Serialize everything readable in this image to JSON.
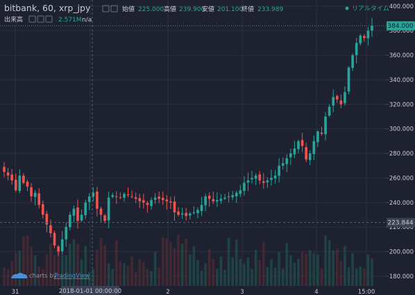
{
  "header": {
    "symbol_title": "bitbank, 60, xrp_jpy",
    "ohlc": [
      {
        "label": "始値",
        "value": "225.000"
      },
      {
        "label": "高値",
        "value": "239.900"
      },
      {
        "label": "安値",
        "value": "201.100"
      },
      {
        "label": "終値",
        "value": "233.989"
      }
    ],
    "realtime_label": "リアルタイム",
    "volume_label": "出来高",
    "volume_value": "2.571M",
    "volume_na": "n/a"
  },
  "watermark": {
    "prefix": "charts by",
    "brand": "TradingView"
  },
  "colors": {
    "background": "#1e2230",
    "up": "#26a69a",
    "down": "#ef5350",
    "text": "#c9ccd6",
    "grid": "#2a2f3e",
    "badge": "#2b3040"
  },
  "chart_data": {
    "type": "candlestick",
    "y_ticks": [
      "400.000",
      "380.000",
      "360.000",
      "340.000",
      "320.000",
      "300.000",
      "280.000",
      "260.000",
      "240.000",
      "220.000",
      "200.000",
      "180.000"
    ],
    "x_ticks": [
      "31",
      "2018-01-01 00:00:00",
      "2",
      "3",
      "4",
      "15:00"
    ],
    "ylim": [
      172,
      405
    ],
    "last_price": "384.000",
    "crosshair_price": "223.844",
    "crosshair_time": "2018-01-01 00:00:00",
    "closes": [
      265,
      262,
      258,
      250,
      262,
      256,
      253,
      245,
      248,
      238,
      230,
      222,
      215,
      205,
      200,
      210,
      220,
      230,
      235,
      225,
      230,
      240,
      245,
      248,
      235,
      230,
      225,
      244,
      246,
      245,
      244,
      247,
      246,
      245,
      243,
      241,
      240,
      238,
      242,
      244,
      243,
      242,
      241,
      240,
      232,
      230,
      231,
      229,
      231,
      232,
      234,
      238,
      245,
      243,
      241,
      242,
      243,
      244,
      245,
      246,
      248,
      250,
      256,
      258,
      260,
      262,
      258,
      256,
      258,
      260,
      262,
      270,
      272,
      276,
      280,
      284,
      290,
      286,
      275,
      280,
      290,
      298,
      296,
      310,
      318,
      326,
      324,
      320,
      330,
      350,
      360,
      370,
      376,
      374,
      380,
      384
    ]
  }
}
